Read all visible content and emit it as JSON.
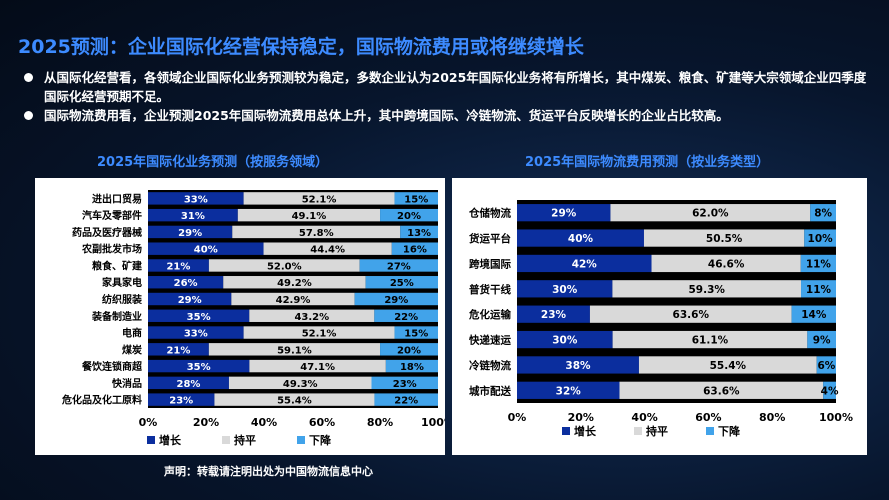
{
  "page": {
    "title": "2025预测：企业国际化经营保持稳定，国际物流费用或将继续增长",
    "bullets": [
      "从国际化经营看，各领域企业国际化业务预测较为稳定，多数企业认为2025年国际化业务将有所增长，其中煤炭、粮食、矿建等大宗领域企业四季度国际化经营预期不足。",
      "国际物流费用看，企业预测2025年国际物流费用总体上升，其中跨境国际、冷链物流、货运平台反映增长的企业占比较高。"
    ],
    "footer": "声明：转载请注明出处为中国物流信息中心"
  },
  "colors": {
    "increase": "#0b2e9e",
    "flat": "#d9d9d9",
    "decrease": "#41a3ea",
    "title": "#3d8bff"
  },
  "chart_data": [
    {
      "type": "bar",
      "orientation": "horizontal",
      "stacked": "percent",
      "title": "2025年国际化业务预测（按服务领域）",
      "categories": [
        "进出口贸易",
        "汽车及零部件",
        "药品及医疗器械",
        "农副批发市场",
        "粮食、矿建",
        "家具家电",
        "纺织服装",
        "装备制造业",
        "电商",
        "煤炭",
        "餐饮连锁商超",
        "快消品",
        "危化品及化工原料"
      ],
      "series": [
        {
          "name": "增长",
          "values": [
            33,
            31,
            29,
            40,
            21,
            26,
            29,
            35,
            33,
            21,
            35,
            28,
            23
          ],
          "labels": [
            "33%",
            "31%",
            "29%",
            "40%",
            "21%",
            "26%",
            "29%",
            "35%",
            "33%",
            "21%",
            "35%",
            "28%",
            "23%"
          ]
        },
        {
          "name": "持平",
          "values": [
            52.1,
            49.1,
            57.8,
            44.4,
            52.0,
            49.2,
            42.9,
            43.2,
            52.1,
            59.1,
            47.1,
            49.3,
            55.4
          ],
          "labels": [
            "52.1%",
            "49.1%",
            "57.8%",
            "44.4%",
            "52.0%",
            "49.2%",
            "42.9%",
            "43.2%",
            "52.1%",
            "59.1%",
            "47.1%",
            "49.3%",
            "55.4%"
          ]
        },
        {
          "name": "下降",
          "values": [
            15,
            20,
            13,
            16,
            27,
            25,
            29,
            22,
            15,
            20,
            18,
            23,
            22
          ],
          "labels": [
            "15%",
            "20%",
            "13%",
            "16%",
            "27%",
            "25%",
            "29%",
            "22%",
            "15%",
            "20%",
            "18%",
            "23%",
            "22%"
          ]
        }
      ],
      "xticks": [
        "0%",
        "20%",
        "40%",
        "60%",
        "80%",
        "100%"
      ],
      "xlim": [
        0,
        100
      ],
      "legend": "bottom"
    },
    {
      "type": "bar",
      "orientation": "horizontal",
      "stacked": "percent",
      "title": "2025年国际物流费用预测（按业务类型）",
      "categories": [
        "仓储物流",
        "货运平台",
        "跨境国际",
        "普货干线",
        "危化运输",
        "快递速运",
        "冷链物流",
        "城市配送"
      ],
      "series": [
        {
          "name": "增长",
          "values": [
            29,
            40,
            42,
            30,
            23,
            30,
            38,
            32
          ],
          "labels": [
            "29%",
            "40%",
            "42%",
            "30%",
            "23%",
            "30%",
            "38%",
            "32%"
          ]
        },
        {
          "name": "持平",
          "values": [
            62.0,
            50.5,
            46.6,
            59.3,
            63.6,
            61.1,
            55.4,
            63.6
          ],
          "labels": [
            "62.0%",
            "50.5%",
            "46.6%",
            "59.3%",
            "63.6%",
            "61.1%",
            "55.4%",
            "63.6%"
          ]
        },
        {
          "name": "下降",
          "values": [
            8,
            10,
            11,
            11,
            14,
            9,
            6,
            4
          ],
          "labels": [
            "8%",
            "10%",
            "11%",
            "11%",
            "14%",
            "9%",
            "6%",
            "4%"
          ]
        }
      ],
      "xticks": [
        "0%",
        "20%",
        "40%",
        "60%",
        "80%",
        "100%"
      ],
      "xlim": [
        0,
        100
      ],
      "legend": "bottom"
    }
  ]
}
